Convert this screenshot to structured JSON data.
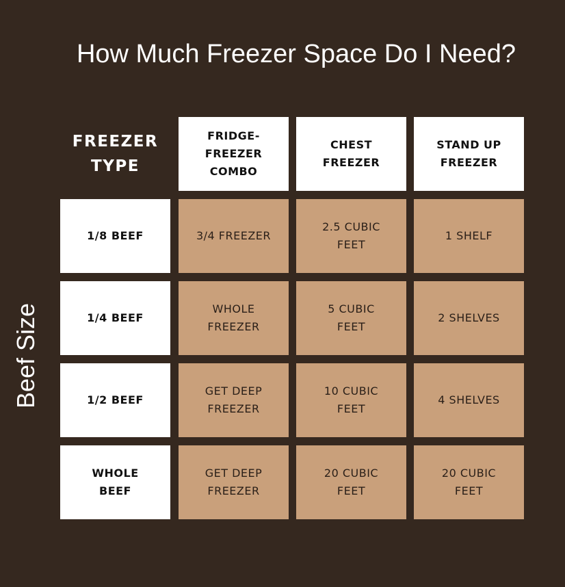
{
  "title": "How Much Freezer Space Do I Need?",
  "side_label": "Beef Size",
  "corner_label": "FREEZER\nTYPE",
  "columns": [
    "FRIDGE-\nFREEZER\nCOMBO",
    "CHEST\nFREEZER",
    "STAND UP\nFREEZER"
  ],
  "rows": [
    {
      "label": "1/8 BEEF",
      "values": [
        "3/4 FREEZER",
        "2.5 CUBIC\nFEET",
        "1 SHELF"
      ]
    },
    {
      "label": "1/4 BEEF",
      "values": [
        "WHOLE\nFREEZER",
        "5 CUBIC\nFEET",
        "2 SHELVES"
      ]
    },
    {
      "label": "1/2 BEEF",
      "values": [
        "GET DEEP\nFREEZER",
        "10 CUBIC\nFEET",
        "4 SHELVES"
      ]
    },
    {
      "label": "WHOLE\nBEEF",
      "values": [
        "GET DEEP\nFREEZER",
        "20 CUBIC\nFEET",
        "20 CUBIC\nFEET"
      ]
    }
  ],
  "colors": {
    "background": "#35281f",
    "value_cell": "#c9a07b",
    "header_cell": "#ffffff"
  }
}
